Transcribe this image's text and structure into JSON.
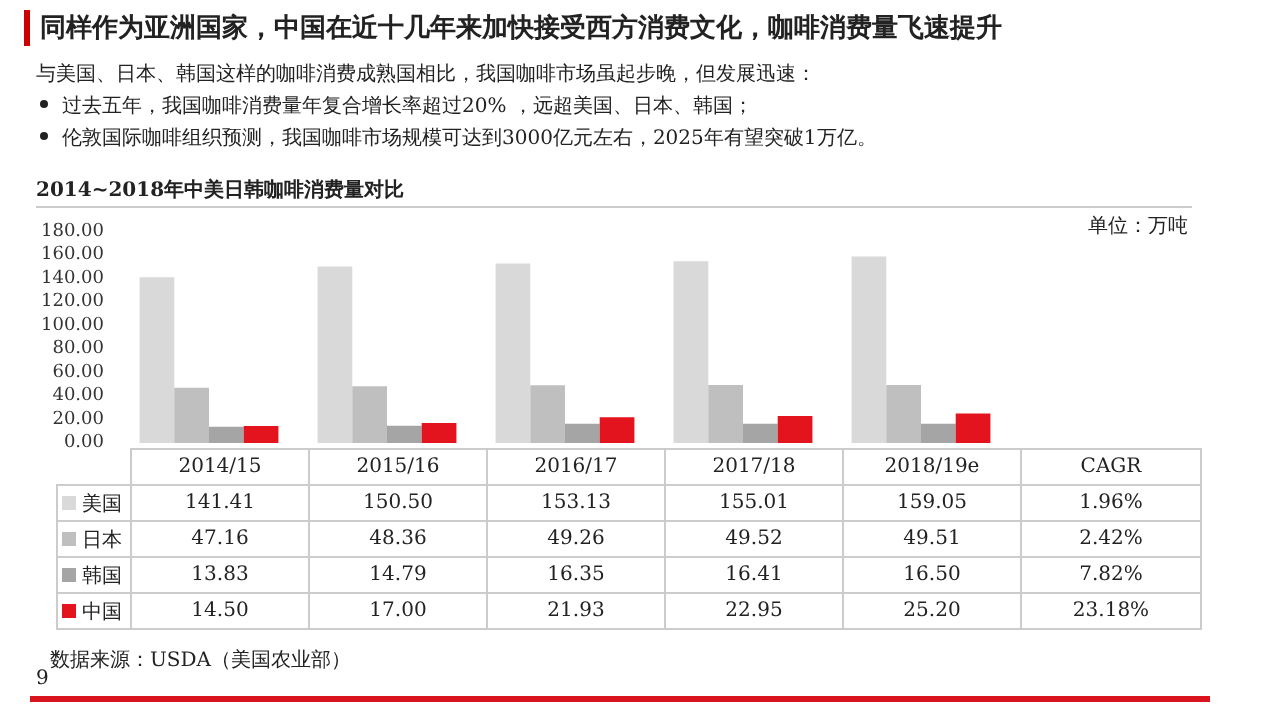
{
  "chart_data": {
    "type": "bar",
    "title": "同样作为亚洲国家，中国在近十几年来加快接受西方消费文化，咖啡消费量飞速提升",
    "subtitle": "2014~2018年中美日韩咖啡消费量对比",
    "ylabel": "单位：万吨",
    "annotations": [
      "与美国、日本、韩国这样的咖啡消费成熟国相比，我国咖啡市场虽起步晚，但发展迅速：",
      "过去五年，我国咖啡消费量年复合增长率超过20% ，远超美国、日本、韩国；",
      "伦敦国际咖啡组织预测，我国咖啡市场规模可达到3000亿元左右，2025年有望突破1万亿。",
      "数据来源：USDA（美国农业部）",
      "9",
      "CAGR",
      "1.96%",
      "2.42%",
      "7.82%",
      "23.18%"
    ],
    "categories": [
      "2014/15",
      "2015/16",
      "2016/17",
      "2017/18",
      "2018/19e"
    ],
    "series": [
      {
        "name": "美国",
        "color": "#d9d9d9",
        "values": [
          141.41,
          150.5,
          153.13,
          155.01,
          159.05
        ],
        "value_labels": [
          "141.41",
          "150.50",
          "153.13",
          "155.01",
          "159.05"
        ]
      },
      {
        "name": "日本",
        "color": "#bfbfbf",
        "values": [
          47.16,
          48.36,
          49.26,
          49.52,
          49.51
        ],
        "value_labels": [
          "47.16",
          "48.36",
          "49.26",
          "49.52",
          "49.51"
        ]
      },
      {
        "name": "韩国",
        "color": "#a5a5a5",
        "values": [
          13.83,
          14.79,
          16.35,
          16.41,
          16.5
        ],
        "value_labels": [
          "13.83",
          "14.79",
          "16.35",
          "16.41",
          "16.50"
        ]
      },
      {
        "name": "中国",
        "color": "#e3141e",
        "values": [
          14.5,
          17.0,
          21.93,
          22.95,
          25.2
        ],
        "value_labels": [
          "14.50",
          "17.00",
          "21.93",
          "22.95",
          "25.20"
        ]
      }
    ],
    "ylim": [
      0,
      180
    ],
    "yticks": [
      {
        "value": 0,
        "label": "0.00"
      },
      {
        "value": 20,
        "label": "20.00"
      },
      {
        "value": 40,
        "label": "40.00"
      },
      {
        "value": 60,
        "label": "60.00"
      },
      {
        "value": 80,
        "label": "80.00"
      },
      {
        "value": 100,
        "label": "100.00"
      },
      {
        "value": 120,
        "label": "120.00"
      },
      {
        "value": 140,
        "label": "140.00"
      },
      {
        "value": 160,
        "label": "160.00"
      },
      {
        "value": 180,
        "label": "180.00"
      }
    ],
    "grid": false,
    "legend": "bottom"
  }
}
